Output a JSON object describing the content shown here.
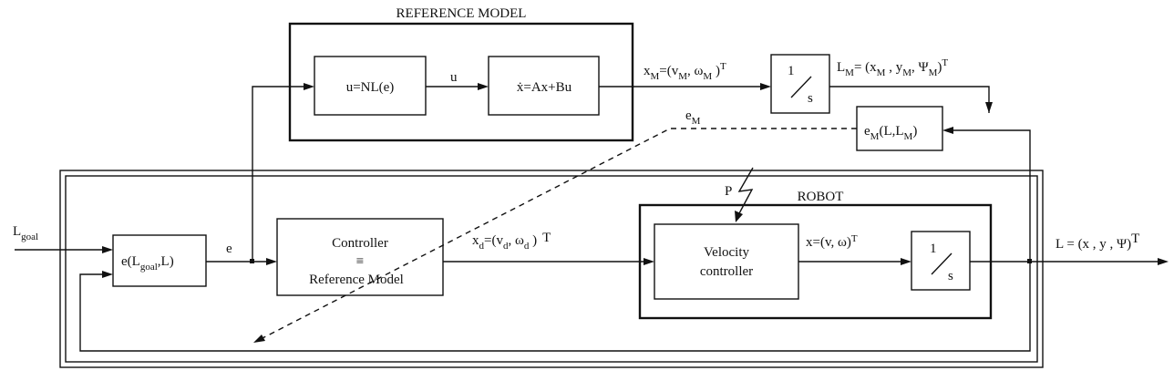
{
  "reference_model": {
    "title": "REFERENCE MODEL",
    "block1": "u=NL(e)",
    "signal_u": "u",
    "block2": "ẋ=Ax+Bu",
    "integrator_num": "1",
    "integrator_den": "s",
    "xm_out": {
      "main": "x",
      "sub": "M",
      "rest1": "=(v",
      "sub2": "M",
      "rest2": ", ω",
      "sub3": "M",
      "rest3": " )",
      "sup": "T"
    },
    "lm_out": {
      "main": "L",
      "sub": "M",
      "rest1": "= (x",
      "sub2": "M",
      "rest2": " , y",
      "sub3": "M",
      "rest3": ", Ψ",
      "sub4": "M",
      "rest4": ")",
      "sup": "T"
    },
    "em_block": {
      "main": "e",
      "sub": "M",
      "rest": "(L,L",
      "sub2": "M",
      "rest2": ")"
    },
    "em_signal": {
      "main": "e",
      "sub": "M"
    }
  },
  "loop": {
    "l_goal": {
      "main": "L",
      "sub": "goal"
    },
    "error_block": {
      "main": "e(L",
      "sub": "goal",
      "rest": ",L)"
    },
    "signal_e": "e",
    "controller": {
      "line1": "Controller",
      "line2": "≡",
      "line3": "Reference Model"
    },
    "xd": {
      "main": "x",
      "sub": "d",
      "rest1": "=(v",
      "sub2": "d",
      "rest2": ", ω",
      "sub3": "d",
      "rest3": " )",
      "sup": "T"
    },
    "output": {
      "text": "L = (x  , y ,  Ψ)",
      "sup": "T"
    }
  },
  "robot": {
    "title": "ROBOT",
    "disturbance": "P",
    "velocity_controller": {
      "line1": "Velocity",
      "line2": "controller"
    },
    "x_signal": {
      "text": "x=(v, ω)",
      "sup": "T"
    },
    "integrator_num": "1",
    "integrator_den": "s"
  }
}
